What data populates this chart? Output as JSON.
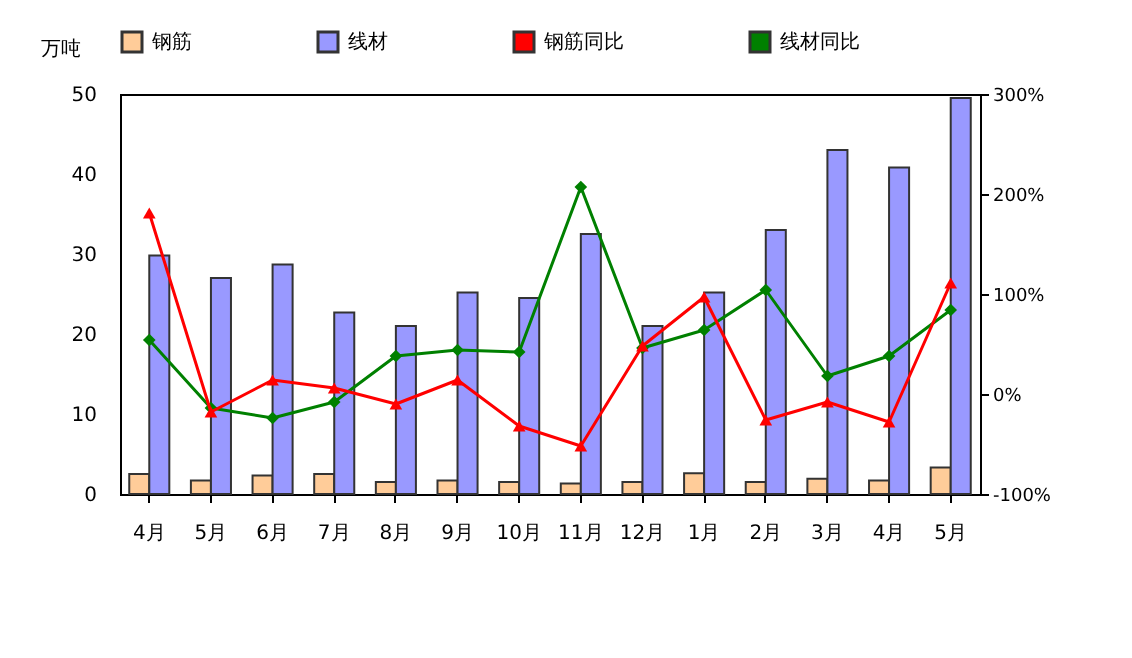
{
  "chart_data": {
    "type": "bar",
    "ylabel": "万吨",
    "categories": [
      "4月",
      "5月",
      "6月",
      "7月",
      "8月",
      "9月",
      "10月",
      "11月",
      "12月",
      "1月",
      "2月",
      "3月",
      "4月",
      "5月"
    ],
    "series": [
      {
        "name": "钢筋",
        "color": "#ffcc99",
        "values": [
          2.5,
          1.7,
          2.3,
          2.5,
          1.5,
          1.7,
          1.5,
          1.3,
          1.5,
          2.6,
          1.5,
          1.9,
          1.7,
          3.3
        ]
      },
      {
        "name": "线材",
        "color": "#9999ff",
        "values": [
          29.8,
          27,
          28.7,
          22.7,
          21,
          25.2,
          24.5,
          32.5,
          21,
          25.2,
          33,
          43,
          40.8,
          49.5
        ]
      },
      {
        "name": "钢筋同比",
        "type": "line",
        "axis": "y2",
        "marker": "triangle",
        "color": "#ff0000",
        "values": [
          181,
          -18,
          14,
          6,
          -10,
          14,
          -32,
          -52,
          48,
          97,
          -26,
          -8,
          -28,
          111
        ]
      },
      {
        "name": "线材同比",
        "type": "line",
        "axis": "y2",
        "marker": "diamond",
        "color": "#008000",
        "values": [
          54,
          -14,
          -24,
          -8,
          38,
          44,
          42,
          207,
          46,
          64,
          104,
          18,
          38,
          84
        ]
      }
    ],
    "ylim": [
      0,
      50
    ],
    "yticks": [
      0,
      10,
      20,
      30,
      40,
      50
    ],
    "y2lim": [
      -100,
      300
    ],
    "y2ticks": [
      {
        "value": -100,
        "label": "-100%"
      },
      {
        "value": 0,
        "label": "0%"
      },
      {
        "value": 100,
        "label": "100%"
      },
      {
        "value": 200,
        "label": "200%"
      },
      {
        "value": 300,
        "label": "300%"
      }
    ],
    "legend": "top",
    "grid": false
  }
}
